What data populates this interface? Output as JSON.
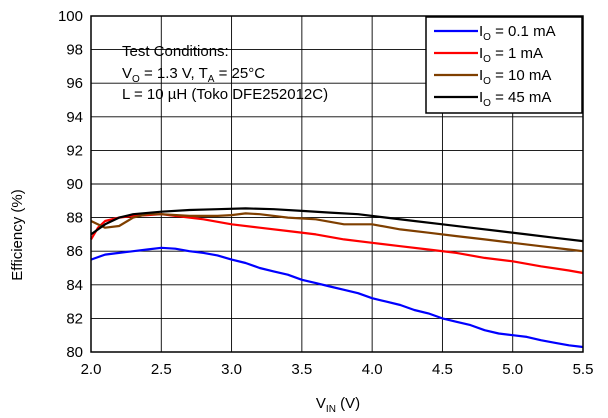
{
  "chart_data": {
    "type": "line",
    "title": "",
    "xlabel": {
      "main": "V",
      "sub": "IN",
      "unit": " (V)"
    },
    "ylabel": "Efficiency (%)",
    "xlim": [
      2.0,
      5.5
    ],
    "ylim": [
      80,
      100
    ],
    "x_ticks": [
      "2.0",
      "2.5",
      "3.0",
      "3.5",
      "4.0",
      "4.5",
      "5.0",
      "5.5"
    ],
    "y_ticks": [
      "80",
      "82",
      "84",
      "86",
      "88",
      "90",
      "92",
      "94",
      "96",
      "98",
      "100"
    ],
    "grid": true,
    "legend_position": "top-right",
    "annotation": {
      "line1": "Test Conditions:",
      "line2": {
        "v": "V",
        "vsub": "O",
        "mid": " = 1.3 V, T",
        "tsub": "A",
        "end": " = 25°C"
      },
      "line3": "L = 10 µH (Toko DFE252012C)"
    },
    "series": [
      {
        "name": {
          "main": "I",
          "sub": "O",
          "rest": " = 0.1 mA"
        },
        "color": "#0000ff",
        "points": [
          [
            2.0,
            85.5
          ],
          [
            2.1,
            85.8
          ],
          [
            2.2,
            85.9
          ],
          [
            2.3,
            86.0
          ],
          [
            2.4,
            86.1
          ],
          [
            2.5,
            86.2
          ],
          [
            2.6,
            86.15
          ],
          [
            2.7,
            86.0
          ],
          [
            2.8,
            85.9
          ],
          [
            2.9,
            85.75
          ],
          [
            3.0,
            85.5
          ],
          [
            3.1,
            85.3
          ],
          [
            3.2,
            85.0
          ],
          [
            3.3,
            84.8
          ],
          [
            3.4,
            84.6
          ],
          [
            3.5,
            84.3
          ],
          [
            3.6,
            84.1
          ],
          [
            3.7,
            83.9
          ],
          [
            3.8,
            83.7
          ],
          [
            3.9,
            83.5
          ],
          [
            4.0,
            83.2
          ],
          [
            4.1,
            83.0
          ],
          [
            4.2,
            82.8
          ],
          [
            4.3,
            82.5
          ],
          [
            4.4,
            82.3
          ],
          [
            4.5,
            82.0
          ],
          [
            4.6,
            81.8
          ],
          [
            4.7,
            81.6
          ],
          [
            4.8,
            81.3
          ],
          [
            4.9,
            81.1
          ],
          [
            5.0,
            81.0
          ],
          [
            5.1,
            80.9
          ],
          [
            5.2,
            80.7
          ],
          [
            5.3,
            80.55
          ],
          [
            5.4,
            80.4
          ],
          [
            5.5,
            80.3
          ]
        ]
      },
      {
        "name": {
          "main": "I",
          "sub": "O",
          "rest": " = 1 mA"
        },
        "color": "#ff0000",
        "points": [
          [
            2.0,
            86.7
          ],
          [
            2.05,
            87.4
          ],
          [
            2.1,
            87.8
          ],
          [
            2.2,
            88.0
          ],
          [
            2.3,
            88.1
          ],
          [
            2.4,
            88.15
          ],
          [
            2.5,
            88.2
          ],
          [
            2.6,
            88.1
          ],
          [
            2.8,
            87.9
          ],
          [
            3.0,
            87.6
          ],
          [
            3.2,
            87.4
          ],
          [
            3.4,
            87.2
          ],
          [
            3.6,
            87.0
          ],
          [
            3.8,
            86.7
          ],
          [
            4.0,
            86.5
          ],
          [
            4.2,
            86.3
          ],
          [
            4.4,
            86.1
          ],
          [
            4.6,
            85.9
          ],
          [
            4.8,
            85.6
          ],
          [
            5.0,
            85.4
          ],
          [
            5.2,
            85.1
          ],
          [
            5.4,
            84.85
          ],
          [
            5.5,
            84.7
          ]
        ]
      },
      {
        "name": {
          "main": "I",
          "sub": "O",
          "rest": " = 10 mA"
        },
        "color": "#7f3f00",
        "points": [
          [
            2.0,
            87.8
          ],
          [
            2.1,
            87.4
          ],
          [
            2.2,
            87.5
          ],
          [
            2.3,
            88.0
          ],
          [
            2.4,
            88.2
          ],
          [
            2.5,
            88.2
          ],
          [
            2.7,
            88.1
          ],
          [
            2.9,
            88.1
          ],
          [
            3.0,
            88.15
          ],
          [
            3.1,
            88.25
          ],
          [
            3.2,
            88.2
          ],
          [
            3.4,
            88.0
          ],
          [
            3.6,
            87.9
          ],
          [
            3.8,
            87.6
          ],
          [
            3.9,
            87.6
          ],
          [
            4.0,
            87.6
          ],
          [
            4.2,
            87.3
          ],
          [
            4.4,
            87.1
          ],
          [
            4.6,
            86.9
          ],
          [
            4.8,
            86.7
          ],
          [
            5.0,
            86.5
          ],
          [
            5.2,
            86.3
          ],
          [
            5.4,
            86.1
          ],
          [
            5.5,
            86.0
          ]
        ]
      },
      {
        "name": {
          "main": "I",
          "sub": "O",
          "rest": " = 45 mA"
        },
        "color": "#000000",
        "points": [
          [
            2.0,
            87.0
          ],
          [
            2.1,
            87.6
          ],
          [
            2.2,
            88.0
          ],
          [
            2.3,
            88.2
          ],
          [
            2.5,
            88.35
          ],
          [
            2.7,
            88.45
          ],
          [
            2.9,
            88.5
          ],
          [
            3.1,
            88.55
          ],
          [
            3.3,
            88.5
          ],
          [
            3.5,
            88.4
          ],
          [
            3.7,
            88.3
          ],
          [
            3.9,
            88.2
          ],
          [
            4.1,
            88.0
          ],
          [
            4.3,
            87.8
          ],
          [
            4.5,
            87.6
          ],
          [
            4.7,
            87.4
          ],
          [
            4.9,
            87.2
          ],
          [
            5.1,
            87.0
          ],
          [
            5.3,
            86.8
          ],
          [
            5.5,
            86.6
          ]
        ]
      }
    ]
  }
}
